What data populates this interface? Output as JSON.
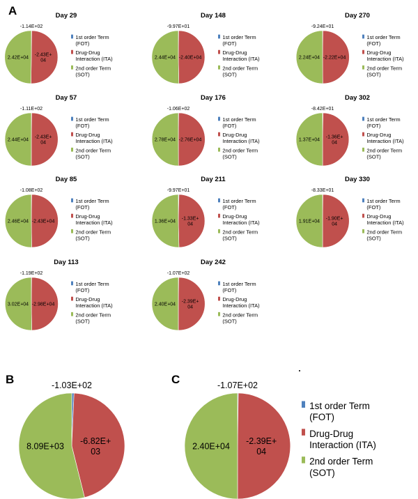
{
  "panel_letters": [
    "A",
    "B",
    "C"
  ],
  "legend": {
    "fot": [
      "1st order Term",
      "(FOT)"
    ],
    "ita": [
      "Drug-Drug",
      "Interaction (ITA)"
    ],
    "sot": [
      "2nd order Term",
      "(SOT)"
    ]
  },
  "colors": {
    "fot": "#4f81bd",
    "ita": "#c0504d",
    "sot": "#9bbb59"
  },
  "chart_data": [
    {
      "type": "pie",
      "panel": "A",
      "title": "Day 29",
      "series": [
        {
          "name": "1st order Term (FOT)",
          "value": -114,
          "label": [
            "-1.14E+02"
          ]
        },
        {
          "name": "Drug-Drug Interaction (ITA)",
          "value": -24300,
          "label": [
            "-2.43E+",
            "04"
          ]
        },
        {
          "name": "2nd order Term (SOT)",
          "value": 24200,
          "label": [
            "2.42E+04"
          ]
        }
      ]
    },
    {
      "type": "pie",
      "panel": "A",
      "title": "Day 148",
      "series": [
        {
          "name": "1st order Term (FOT)",
          "value": -99.7,
          "label": [
            "-9.97E+01"
          ]
        },
        {
          "name": "Drug-Drug Interaction (ITA)",
          "value": -24000,
          "label": [
            "-2.40E+04"
          ]
        },
        {
          "name": "2nd order Term (SOT)",
          "value": 24400,
          "label": [
            "2.44E+04"
          ]
        }
      ]
    },
    {
      "type": "pie",
      "panel": "A",
      "title": "Day 270",
      "series": [
        {
          "name": "1st order Term (FOT)",
          "value": -92.4,
          "label": [
            "-9.24E+01"
          ]
        },
        {
          "name": "Drug-Drug Interaction (ITA)",
          "value": -22200,
          "label": [
            "-2.22E+04"
          ]
        },
        {
          "name": "2nd order Term (SOT)",
          "value": 22400,
          "label": [
            "2.24E+04"
          ]
        }
      ]
    },
    {
      "type": "pie",
      "panel": "A",
      "title": "Day 57",
      "series": [
        {
          "name": "1st order Term (FOT)",
          "value": -111,
          "label": [
            "-1.11E+02"
          ]
        },
        {
          "name": "Drug-Drug Interaction (ITA)",
          "value": -24300,
          "label": [
            "-2.43E+",
            "04"
          ]
        },
        {
          "name": "2nd order Term (SOT)",
          "value": 24400,
          "label": [
            "2.44E+04"
          ]
        }
      ]
    },
    {
      "type": "pie",
      "panel": "A",
      "title": "Day 176",
      "series": [
        {
          "name": "1st order Term (FOT)",
          "value": -106,
          "label": [
            "-1.06E+02"
          ]
        },
        {
          "name": "Drug-Drug Interaction (ITA)",
          "value": -27600,
          "label": [
            "-2.76E+04"
          ]
        },
        {
          "name": "2nd order Term (SOT)",
          "value": 27800,
          "label": [
            "2.78E+04"
          ]
        }
      ]
    },
    {
      "type": "pie",
      "panel": "A",
      "title": "Day 302",
      "series": [
        {
          "name": "1st order Term (FOT)",
          "value": -84.2,
          "label": [
            "-8.42E+01"
          ]
        },
        {
          "name": "Drug-Drug Interaction (ITA)",
          "value": -13600,
          "label": [
            "-1.36E+",
            "04"
          ]
        },
        {
          "name": "2nd order Term (SOT)",
          "value": 13700,
          "label": [
            "1.37E+04"
          ]
        }
      ]
    },
    {
      "type": "pie",
      "panel": "A",
      "title": "Day 85",
      "series": [
        {
          "name": "1st order Term (FOT)",
          "value": -108,
          "label": [
            "-1.08E+02"
          ]
        },
        {
          "name": "Drug-Drug Interaction (ITA)",
          "value": -24300,
          "label": [
            "-2.43E+04"
          ]
        },
        {
          "name": "2nd order Term (SOT)",
          "value": 24600,
          "label": [
            "2.46E+04"
          ]
        }
      ]
    },
    {
      "type": "pie",
      "panel": "A",
      "title": "Day 211",
      "series": [
        {
          "name": "1st order Term (FOT)",
          "value": -99.7,
          "label": [
            "-9.97E+01"
          ]
        },
        {
          "name": "Drug-Drug Interaction (ITA)",
          "value": -13300,
          "label": [
            "-1.33E+",
            "04"
          ]
        },
        {
          "name": "2nd order Term (SOT)",
          "value": 13600,
          "label": [
            "1.36E+04"
          ]
        }
      ]
    },
    {
      "type": "pie",
      "panel": "A",
      "title": "Day 330",
      "series": [
        {
          "name": "1st order Term (FOT)",
          "value": -83.3,
          "label": [
            "-8.33E+01"
          ]
        },
        {
          "name": "Drug-Drug Interaction (ITA)",
          "value": -19000,
          "label": [
            "-1.90E+",
            "04"
          ]
        },
        {
          "name": "2nd order Term (SOT)",
          "value": 19100,
          "label": [
            "1.91E+04"
          ]
        }
      ]
    },
    {
      "type": "pie",
      "panel": "A",
      "title": "Day 113",
      "series": [
        {
          "name": "1st order Term (FOT)",
          "value": -119,
          "label": [
            "-1.19E+02"
          ]
        },
        {
          "name": "Drug-Drug Interaction (ITA)",
          "value": -29800,
          "label": [
            "-2.98E+04"
          ]
        },
        {
          "name": "2nd order Term (SOT)",
          "value": 30200,
          "label": [
            "3.02E+04"
          ]
        }
      ]
    },
    {
      "type": "pie",
      "panel": "A",
      "title": "Day 242",
      "series": [
        {
          "name": "1st order Term (FOT)",
          "value": -107,
          "label": [
            "-1.07E+02"
          ]
        },
        {
          "name": "Drug-Drug Interaction (ITA)",
          "value": -23900,
          "label": [
            "-2.39E+",
            "04"
          ]
        },
        {
          "name": "2nd order Term (SOT)",
          "value": 24000,
          "label": [
            "2.40E+04"
          ]
        }
      ]
    },
    {
      "type": "pie",
      "panel": "B",
      "title": "",
      "series": [
        {
          "name": "1st order Term (FOT)",
          "value": -103,
          "label": [
            "-1.03E+02"
          ]
        },
        {
          "name": "Drug-Drug Interaction (ITA)",
          "value": -6820,
          "label": [
            "-6.82E+",
            "03"
          ]
        },
        {
          "name": "2nd order Term (SOT)",
          "value": 8090,
          "label": [
            "8.09E+03"
          ]
        }
      ]
    },
    {
      "type": "pie",
      "panel": "C",
      "title": "",
      "series": [
        {
          "name": "1st order Term (FOT)",
          "value": -107,
          "label": [
            "-1.07E+02"
          ]
        },
        {
          "name": "Drug-Drug Interaction (ITA)",
          "value": -23900,
          "label": [
            "-2.39E+",
            "04"
          ]
        },
        {
          "name": "2nd order Term (SOT)",
          "value": 24000,
          "label": [
            "2.40E+04"
          ]
        }
      ]
    }
  ]
}
